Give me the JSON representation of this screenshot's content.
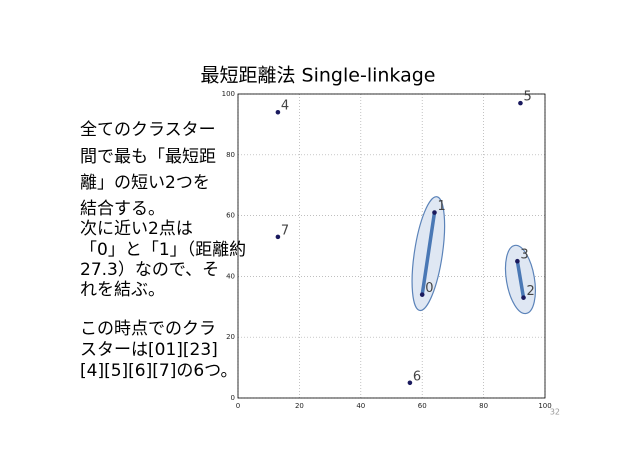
{
  "slide_title": "最短距離法 Single-linkage",
  "body": [
    [
      "全てのクラスター",
      "間で最も「最短距",
      "離」の短い2つを",
      "結合する。"
    ],
    [
      "次に近い2点は",
      "「0」と「1」（距離約",
      "27.3）なので、そ",
      "れを結ぶ。"
    ],
    [
      "この時点でのクラ",
      "スターは[01][23]",
      "[4][5][6][7]の6つ。"
    ]
  ],
  "page_number": "32",
  "chart_data": {
    "type": "scatter",
    "labels": [
      "0",
      "1",
      "2",
      "3",
      "4",
      "5",
      "6",
      "7"
    ],
    "x": [
      60,
      64,
      93,
      91,
      13,
      92,
      56,
      13
    ],
    "values": [
      34,
      61,
      33,
      45,
      94,
      97,
      5,
      53
    ],
    "color": "#1a1a5e",
    "xlim": [
      0,
      100
    ],
    "ylim": [
      0,
      100
    ],
    "xticks": [
      0,
      20,
      40,
      60,
      80,
      100
    ],
    "yticks": [
      0,
      20,
      40,
      60,
      80,
      100
    ],
    "grid": true
  }
}
